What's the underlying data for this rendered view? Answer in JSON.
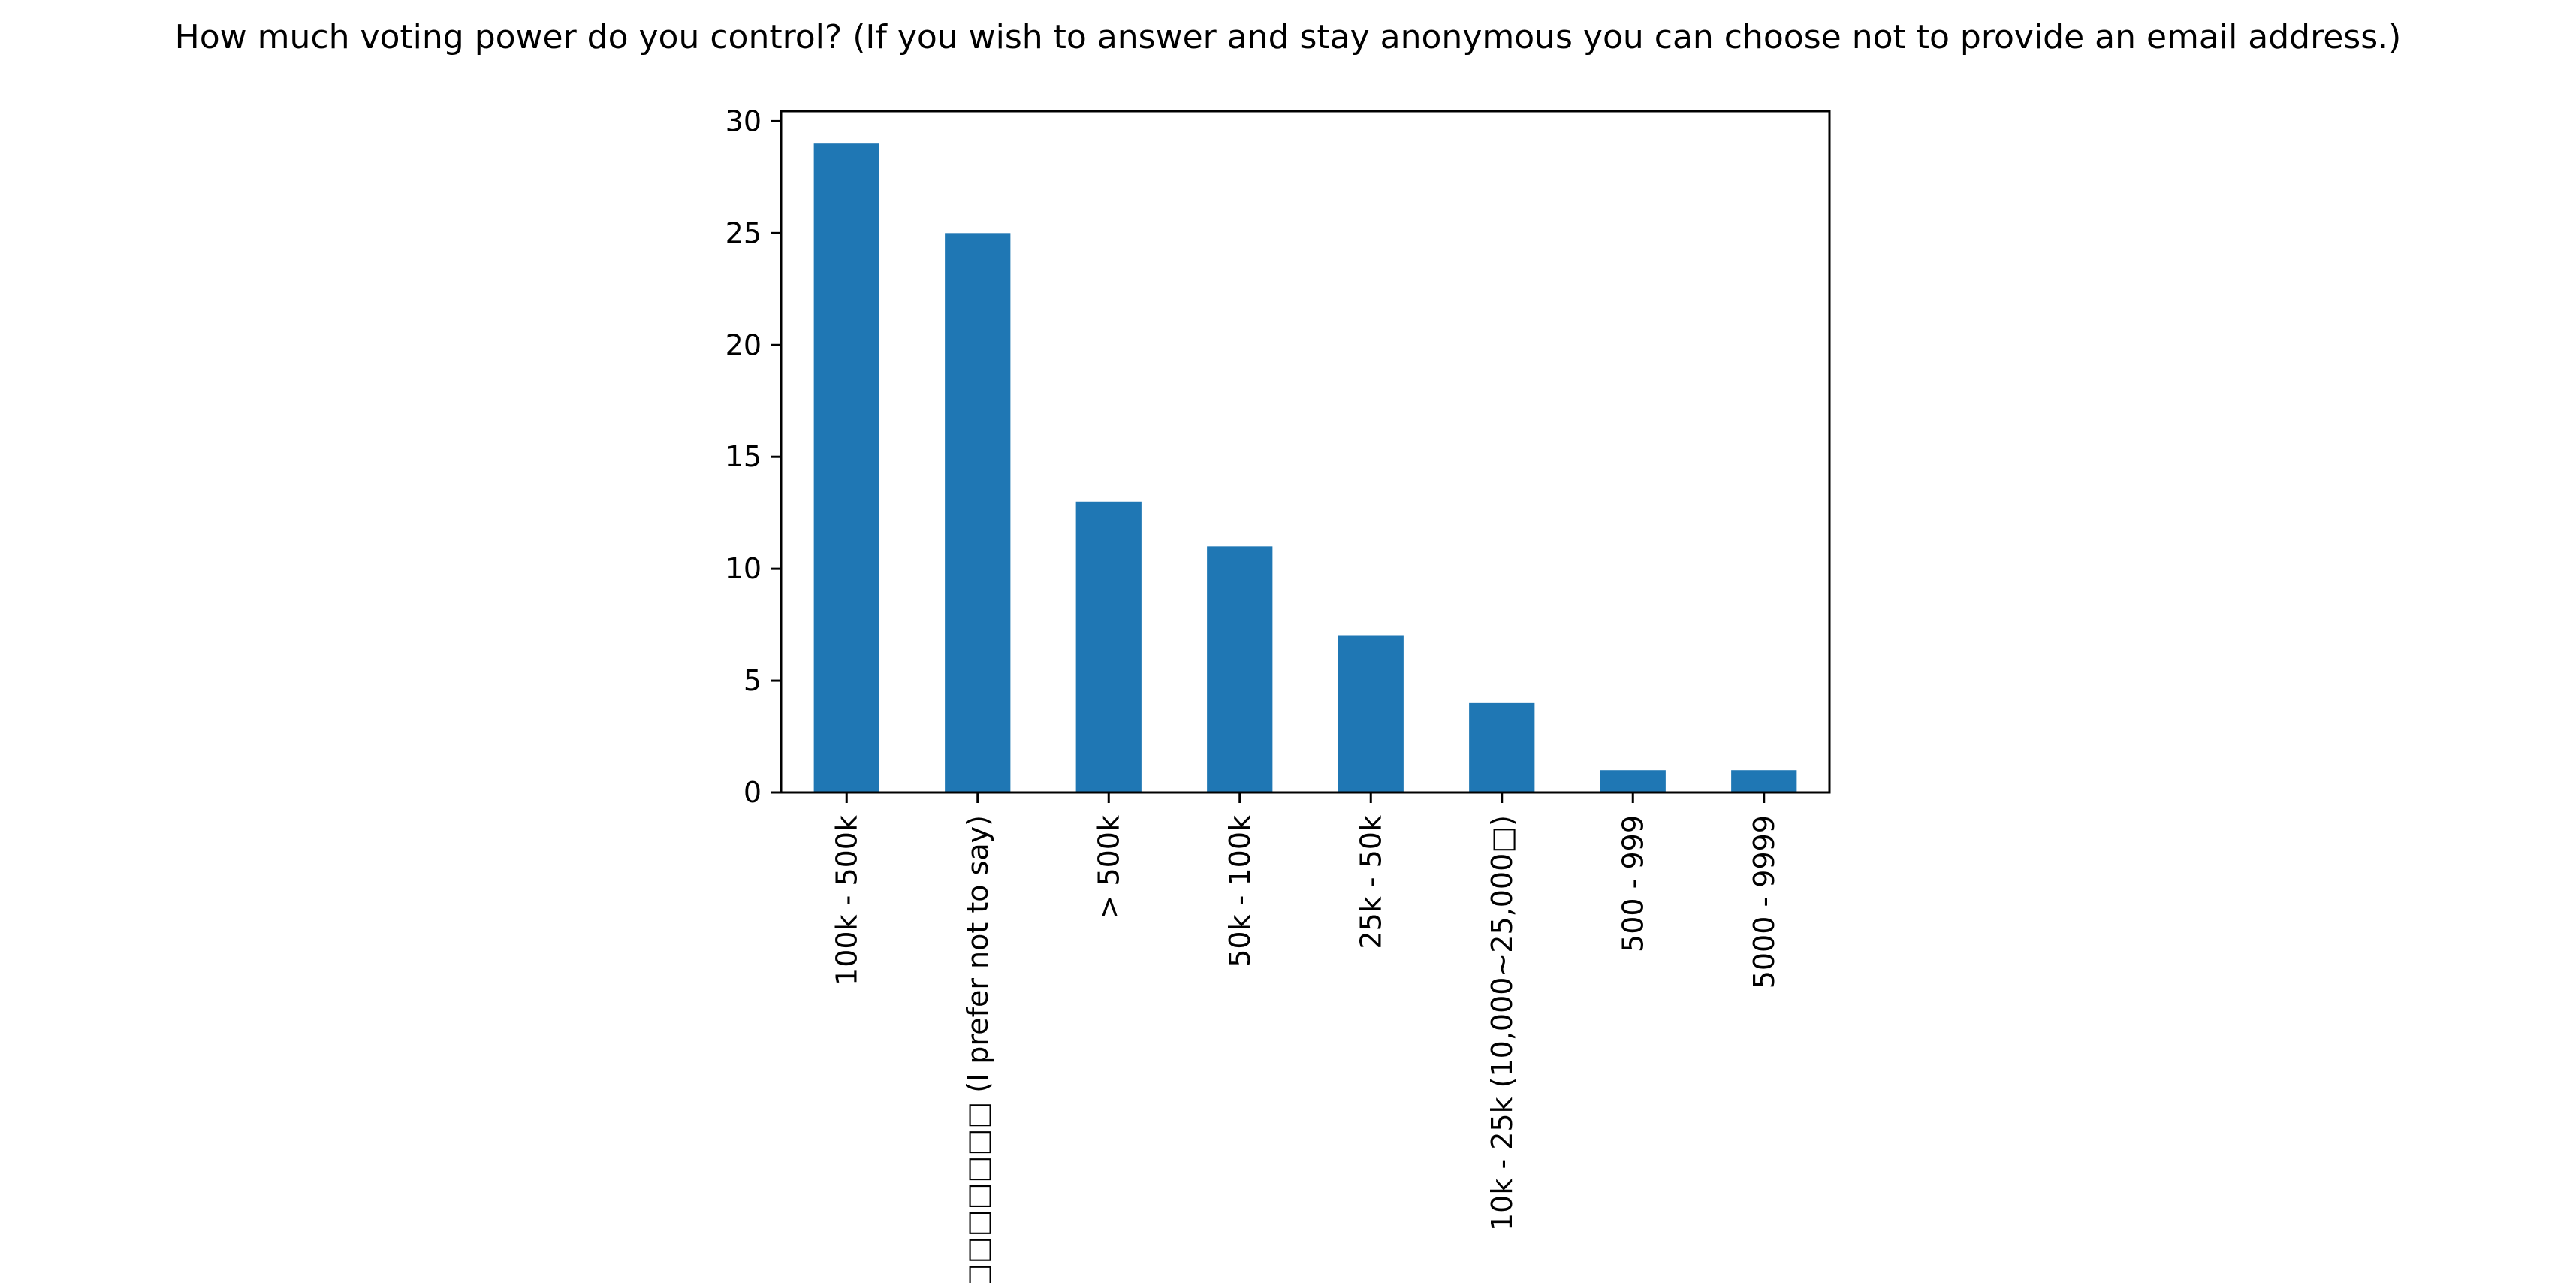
{
  "chart_data": {
    "type": "bar",
    "title": "How much voting power do you control? (If you wish to answer and stay anonymous you can choose not to provide an email address.)",
    "xlabel": "",
    "ylabel": "",
    "categories": [
      "100k - 500k",
      "□□□□□□□ (I prefer not to say)",
      "> 500k",
      "50k - 100k",
      "25k - 50k",
      "10k - 25k (10,000~25,000□)",
      "500 - 999",
      "5000 - 9999"
    ],
    "values": [
      29,
      25,
      13,
      11,
      7,
      4,
      1,
      1
    ],
    "ylim": [
      0,
      30.45
    ],
    "yticks": [
      0,
      5,
      10,
      15,
      20,
      25,
      30
    ],
    "grid": false,
    "legend": "none",
    "bar_color": "#1f77b4"
  }
}
